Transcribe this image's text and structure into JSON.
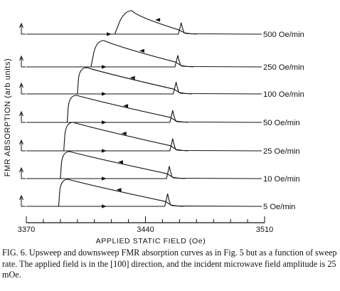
{
  "chart_data": {
    "type": "line",
    "title": "",
    "xlabel": "APPLIED STATIC FIELD (Oe)",
    "ylabel": "FMR ABSORPTION (arb units)",
    "xlim": [
      3370,
      3510
    ],
    "x_ticks": [
      "3370",
      "3440",
      "3510"
    ],
    "grid": false,
    "legend": "none",
    "series": [
      {
        "name": "500 Oe/min",
        "jump_field": 3422,
        "peak_field": 3461
      },
      {
        "name": "250 Oe/min",
        "jump_field": 3408,
        "peak_field": 3459
      },
      {
        "name": "100 Oe/min",
        "jump_field": 3400,
        "peak_field": 3458
      },
      {
        "name": "50 Oe/min",
        "jump_field": 3394,
        "peak_field": 3456
      },
      {
        "name": "25 Oe/min",
        "jump_field": 3392,
        "peak_field": 3456
      },
      {
        "name": "10 Oe/min",
        "jump_field": 3390,
        "peak_field": 3454
      },
      {
        "name": "5 Oe/min",
        "jump_field": 3389,
        "peak_field": 3453
      }
    ]
  },
  "caption": "FIG. 6. Upsweep and downsweep FMR absorption curves as in Fig. 5 but as a function of sweep rate. The applied field is in the [100] direction, and the incident microwave field amplitude is 25 mOe."
}
